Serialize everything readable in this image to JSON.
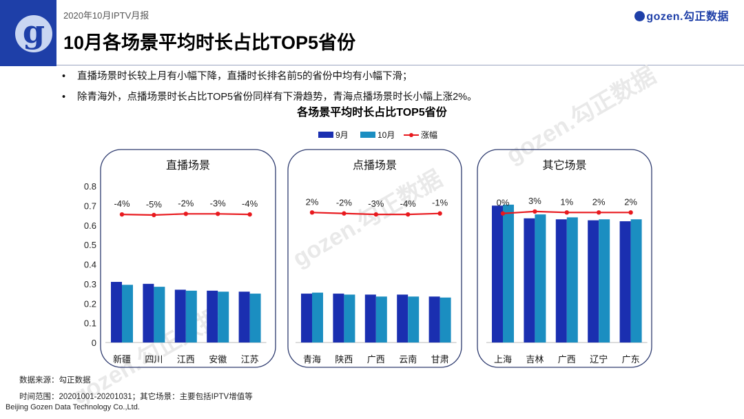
{
  "header": {
    "report_label": "2020年10月IPTV月报",
    "title": "10月各场景平均时长占比TOP5省份",
    "brand": "gozen.勾正数据",
    "logo_letter": "g"
  },
  "bullets": [
    "直播场景时长较上月有小幅下降，直播时长排名前5的省份中均有小幅下滑；",
    "除青海外，点播场景时长占比TOP5省份同样有下滑趋势，青海点播场景时长小幅上涨2%。"
  ],
  "watermark_text": "gozen.勾正数据",
  "colors": {
    "sep": "#1a2fb0",
    "oct": "#1b8ec1",
    "line": "#e8191e",
    "panel_border": "#2d3a6e",
    "accent": "#1e3fa8"
  },
  "chart_data": {
    "type": "bar",
    "title": "各场景平均时长占比TOP5省份",
    "legend": [
      "9月",
      "10月",
      "涨幅"
    ],
    "ylim": [
      0,
      0.8
    ],
    "yticks": [
      "0",
      "0.1",
      "0.2",
      "0.3",
      "0.4",
      "0.5",
      "0.6",
      "0.7",
      "0.8"
    ],
    "panels": [
      {
        "name": "直播场景",
        "categories": [
          "新疆",
          "四川",
          "江西",
          "安徽",
          "江苏"
        ],
        "series": [
          {
            "name": "9月",
            "values": [
              0.31,
              0.3,
              0.27,
              0.265,
              0.26
            ]
          },
          {
            "name": "10月",
            "values": [
              0.295,
              0.285,
              0.265,
              0.26,
              0.25
            ]
          }
        ],
        "change_labels": [
          "-4%",
          "-5%",
          "-2%",
          "-3%",
          "-4%"
        ],
        "change_line_y": [
          0.655,
          0.652,
          0.658,
          0.658,
          0.655
        ]
      },
      {
        "name": "点播场景",
        "categories": [
          "青海",
          "陕西",
          "广西",
          "云南",
          "甘肃"
        ],
        "series": [
          {
            "name": "9月",
            "values": [
              0.25,
              0.25,
              0.245,
              0.245,
              0.235
            ]
          },
          {
            "name": "10月",
            "values": [
              0.255,
              0.245,
              0.235,
              0.235,
              0.23
            ]
          }
        ],
        "change_labels": [
          "2%",
          "-2%",
          "-3%",
          "-4%",
          "-1%"
        ],
        "change_line_y": [
          0.665,
          0.66,
          0.655,
          0.655,
          0.66
        ]
      },
      {
        "name": "其它场景",
        "categories": [
          "上海",
          "吉林",
          "广西",
          "辽宁",
          "广东"
        ],
        "series": [
          {
            "name": "9月",
            "values": [
              0.7,
              0.635,
              0.63,
              0.625,
              0.62
            ]
          },
          {
            "name": "10月",
            "values": [
              0.705,
              0.655,
              0.64,
              0.63,
              0.63
            ]
          }
        ],
        "change_labels": [
          "0%",
          "3%",
          "1%",
          "2%",
          "2%"
        ],
        "change_line_y": [
          0.66,
          0.67,
          0.665,
          0.665,
          0.665
        ]
      }
    ]
  },
  "footer": {
    "source": "数据来源：勾正数据",
    "range": "时间范围：20201001-20201031；其它场景：主要包括IPTV增值等",
    "company": "Beijing Gozen Data Technology Co.,Ltd."
  }
}
